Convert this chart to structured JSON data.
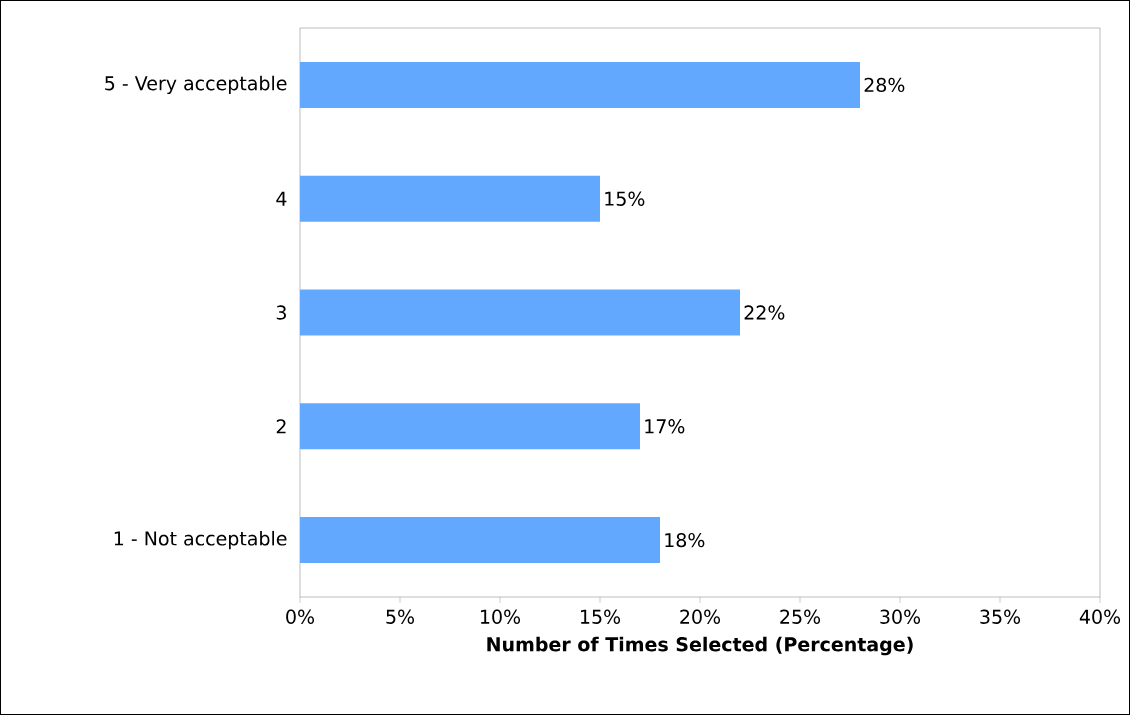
{
  "chart_data": {
    "type": "bar",
    "orientation": "horizontal",
    "xlabel": "Number of Times Selected (Percentage)",
    "categories": [
      "5 - Very acceptable",
      "4",
      "3",
      "2",
      "1 - Not acceptable"
    ],
    "values": [
      28,
      15,
      22,
      17,
      18
    ],
    "value_labels": [
      "28%",
      "15%",
      "22%",
      "17%",
      "18%"
    ],
    "color": "#62a8ff",
    "xlim": [
      0,
      40
    ],
    "xticks": [
      {
        "value": 0,
        "label": "0%"
      },
      {
        "value": 5,
        "label": "5%"
      },
      {
        "value": 10,
        "label": "10%"
      },
      {
        "value": 15,
        "label": "15%"
      },
      {
        "value": 20,
        "label": "20%"
      },
      {
        "value": 25,
        "label": "25%"
      },
      {
        "value": 30,
        "label": "30%"
      },
      {
        "value": 35,
        "label": "35%"
      },
      {
        "value": 40,
        "label": "40%"
      }
    ],
    "grid": false
  }
}
